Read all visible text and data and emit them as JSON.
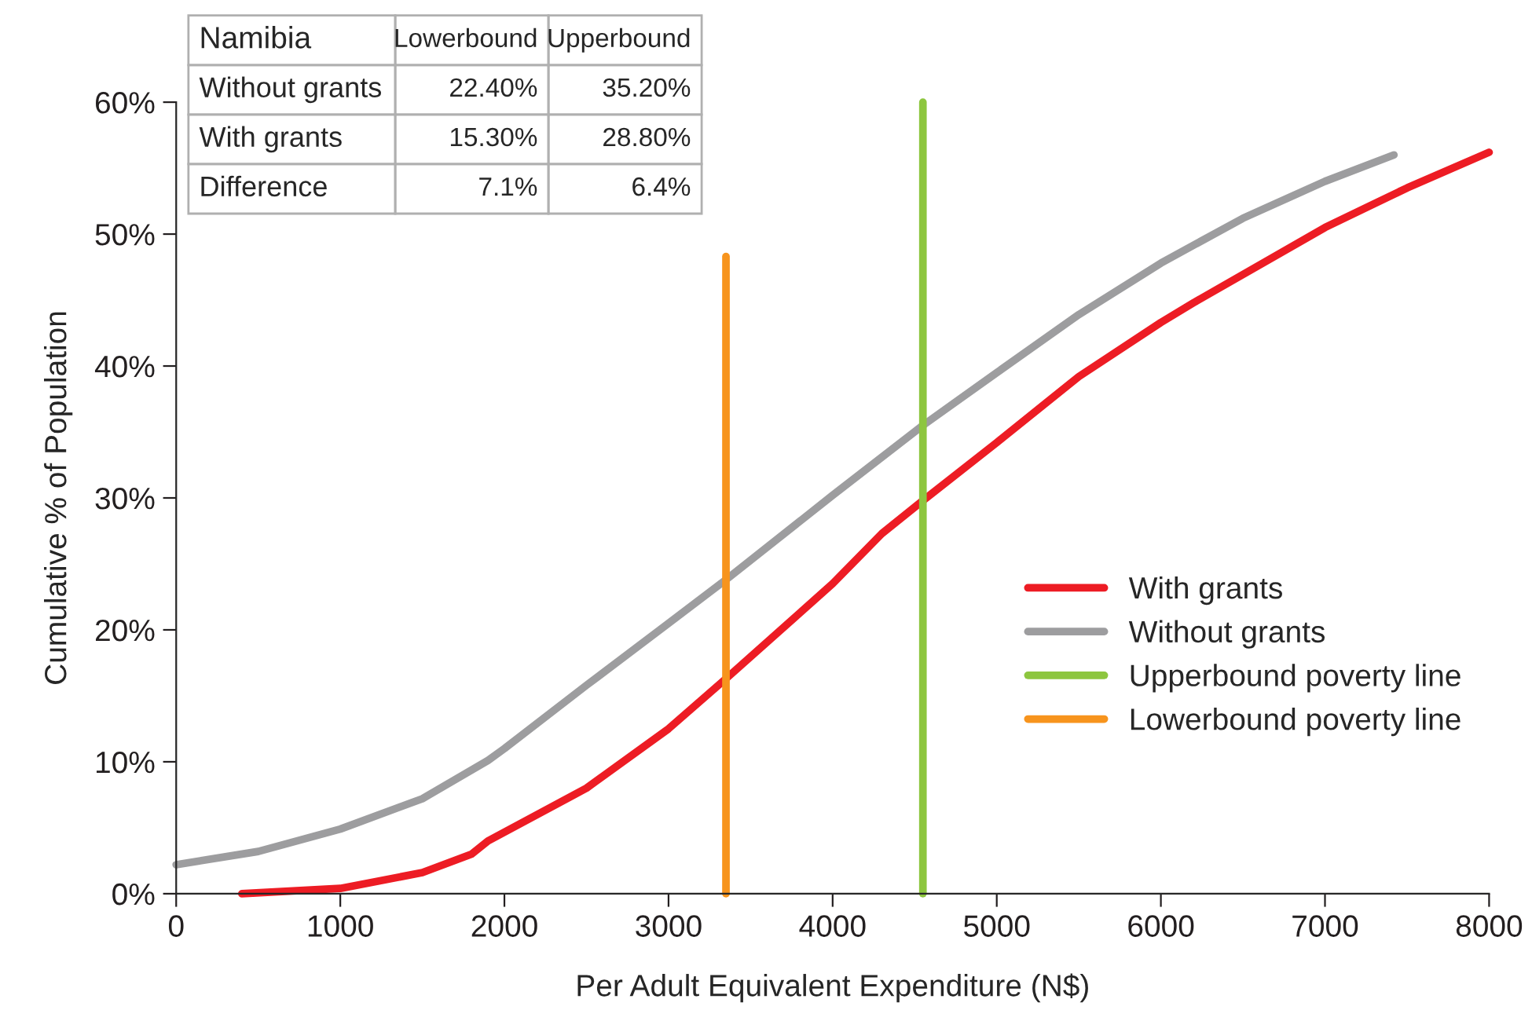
{
  "chart_data": {
    "type": "line",
    "xlabel": "Per Adult Equivalent Expenditure (N$)",
    "ylabel": "Cumulative % of Population",
    "xlim": [
      0,
      8000
    ],
    "xticks": [
      0,
      1000,
      2000,
      3000,
      4000,
      5000,
      6000,
      7000,
      8000
    ],
    "ylim": [
      0,
      60
    ],
    "yticks": [
      {
        "value": 0,
        "label": "0%"
      },
      {
        "value": 10,
        "label": "10%"
      },
      {
        "value": 20,
        "label": "20%"
      },
      {
        "value": 30,
        "label": "30%"
      },
      {
        "value": 40,
        "label": "40%"
      },
      {
        "value": 50,
        "label": "50%"
      },
      {
        "value": 60,
        "label": "60%"
      }
    ],
    "grid": false,
    "legend": "right",
    "marker": "none",
    "line_style": "solid",
    "series": [
      {
        "name": "With grants",
        "color": "#ed1c24",
        "x": [
          400,
          1000,
          1500,
          1800,
          1900,
          2500,
          3000,
          3350,
          4000,
          4300,
          4550,
          5000,
          5500,
          6000,
          6200,
          7000,
          7500,
          8000
        ],
        "values": [
          0,
          0.4,
          1.6,
          3,
          4,
          8,
          12.5,
          16.3,
          23.5,
          27.3,
          29.8,
          34.2,
          39.2,
          43.3,
          44.8,
          50.5,
          53.5,
          56.2
        ]
      },
      {
        "name": "Without grants",
        "color": "#9d9d9f",
        "x": [
          0,
          500,
          1000,
          1500,
          1900,
          2000,
          2500,
          3000,
          3350,
          4000,
          4550,
          5000,
          5500,
          6000,
          6500,
          7000,
          7420
        ],
        "values": [
          2.2,
          3.2,
          4.9,
          7.2,
          10.1,
          11,
          15.8,
          20.5,
          23.8,
          30.2,
          35.5,
          39.5,
          43.9,
          47.8,
          51.2,
          54,
          56
        ]
      },
      {
        "name": "Upperbound poverty line",
        "color": "#8dc63f",
        "x": [
          4550,
          4550
        ],
        "values": [
          0,
          60
        ]
      },
      {
        "name": "Lowerbound poverty line",
        "color": "#f7941d",
        "x": [
          3350,
          3350
        ],
        "values": [
          0,
          48.3
        ]
      }
    ],
    "annotations": [
      "Namibia",
      "Lowerbound",
      "Upperbound",
      "Without grants",
      "22.40%",
      "35.20%",
      "With grants",
      "15.30%",
      "28.80%",
      "Difference",
      "7.1%",
      "6.4%"
    ]
  }
}
